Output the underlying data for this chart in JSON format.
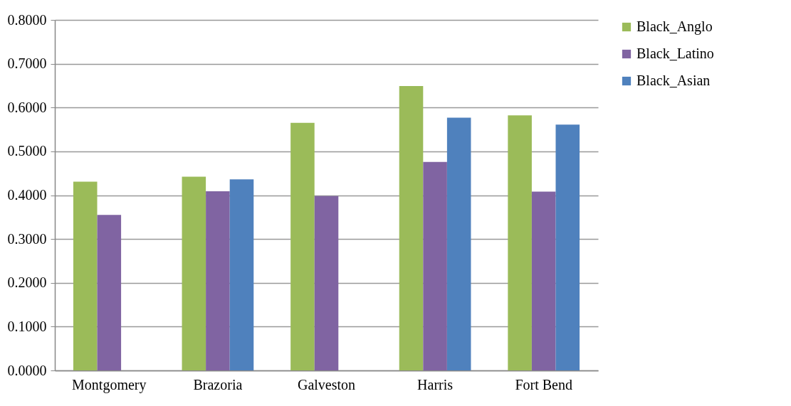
{
  "chart_data": {
    "type": "bar",
    "categories": [
      "Montgomery",
      "Brazoria",
      "Galveston",
      "Harris",
      "Fort Bend"
    ],
    "series": [
      {
        "name": "Black_Anglo",
        "color": "#9bbb59",
        "values": [
          0.431,
          0.442,
          0.565,
          0.649,
          0.582
        ]
      },
      {
        "name": "Black_Latino",
        "color": "#8064a2",
        "values": [
          0.355,
          0.409,
          0.398,
          0.476,
          0.408
        ]
      },
      {
        "name": "Black_Asian",
        "color": "#4f81bd",
        "values": [
          null,
          0.436,
          null,
          0.577,
          0.561
        ]
      }
    ],
    "ylim": [
      0,
      0.8
    ],
    "yticks": [
      {
        "value": 0,
        "label": "0.0000"
      },
      {
        "value": 0.1,
        "label": "0.1000"
      },
      {
        "value": 0.2,
        "label": "0.2000"
      },
      {
        "value": 0.3,
        "label": "0.3000"
      },
      {
        "value": 0.4,
        "label": "0.4000"
      },
      {
        "value": 0.5,
        "label": "0.5000"
      },
      {
        "value": 0.6,
        "label": "0.6000"
      },
      {
        "value": 0.7,
        "label": "0.7000"
      },
      {
        "value": 0.8,
        "label": "0.8000"
      }
    ],
    "grid": "y",
    "legend": "right"
  }
}
